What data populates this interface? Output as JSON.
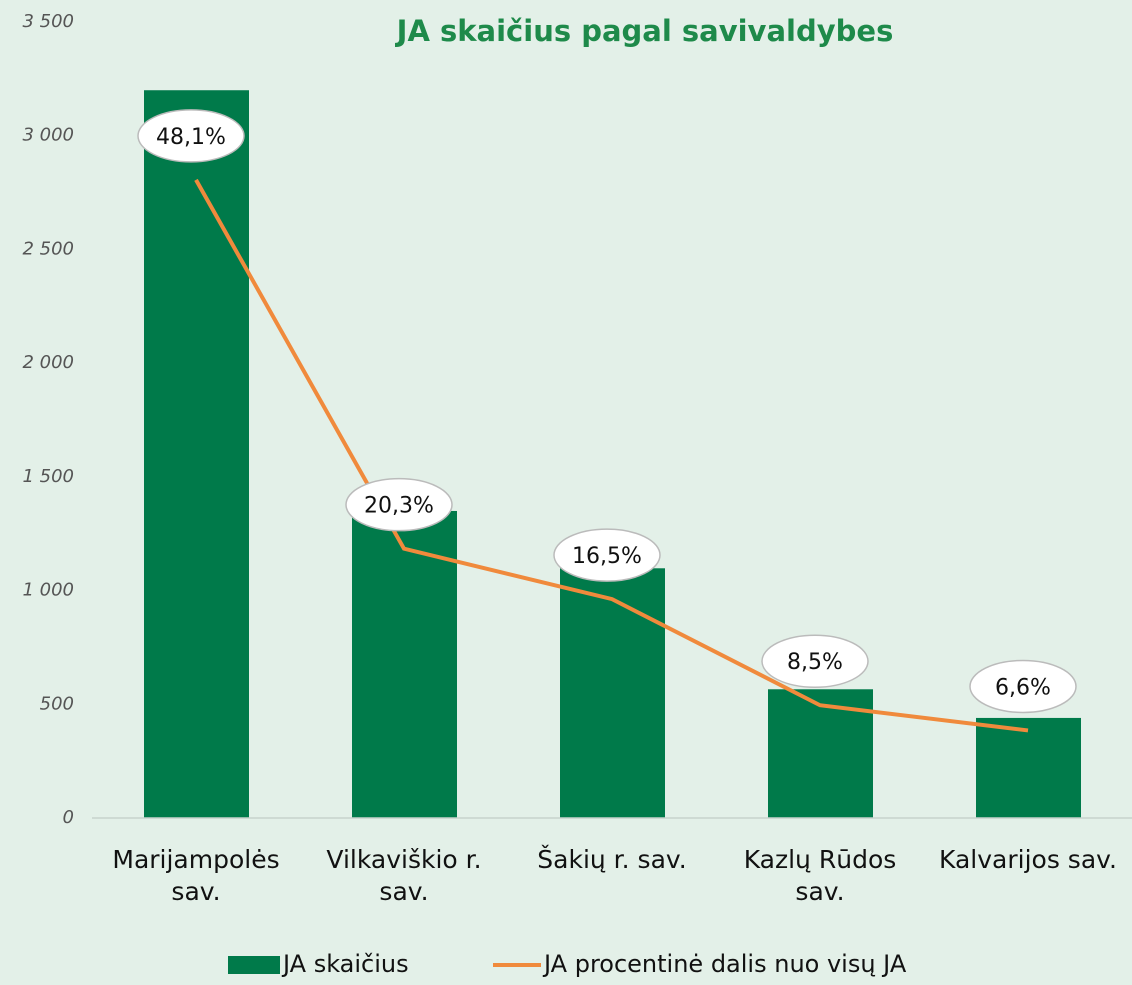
{
  "chart_data": {
    "type": "bar_line",
    "title": "JA skaičius pagal savivaldybes",
    "categories": [
      "Marijampolės sav.",
      "Vilkaviškio r. sav.",
      "Šakių r. sav.",
      "Kazlų Rūdos sav.",
      "Kalvarijos sav."
    ],
    "series": [
      {
        "name": "JA skaičius",
        "type": "bar",
        "color": "#007a4a",
        "values": [
          3200,
          1350,
          1098,
          566,
          440
        ]
      },
      {
        "name": "JA procentinė dalis nuo visų JA",
        "type": "line",
        "axis": "y2",
        "color": "#f08a3c",
        "values": [
          48.1,
          20.3,
          16.5,
          8.5,
          6.6
        ],
        "value_labels": [
          "48,1%",
          "20,3%",
          "16,5%",
          "8,5%",
          "6,6%"
        ]
      }
    ],
    "ylim": [
      0,
      3500
    ],
    "yticks": [
      0,
      500,
      {
        "value": 1000,
        "label": "1 000"
      },
      {
        "value": 1500,
        "label": "1 500"
      },
      {
        "value": 2000,
        "label": "2 000"
      },
      {
        "value": 2500,
        "label": "2 500"
      },
      {
        "value": 3000,
        "label": "3 000"
      },
      {
        "value": 3500,
        "label": "3 500"
      }
    ],
    "y2lim": [
      0,
      60
    ],
    "legend": "bottom"
  }
}
